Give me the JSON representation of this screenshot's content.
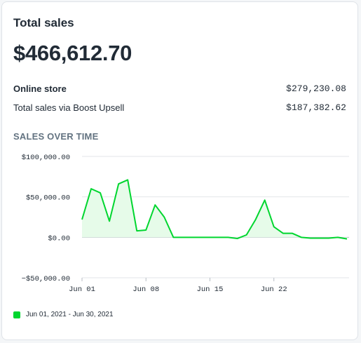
{
  "card": {
    "title": "Total sales",
    "total": "$466,612.70"
  },
  "breakdown": [
    {
      "label": "Online store",
      "value": "$279,230.08"
    },
    {
      "label": "Total sales via Boost Upsell",
      "value": "$187,382.62"
    }
  ],
  "section_title": "SALES OVER TIME",
  "colors": {
    "line": "#00d62f",
    "fill": "#e6fbe9",
    "grid": "#e3e6ea",
    "zero": "#b8bec4"
  },
  "chart_data": {
    "type": "area",
    "x": [
      "Jun 01",
      "Jun 02",
      "Jun 03",
      "Jun 04",
      "Jun 05",
      "Jun 06",
      "Jun 07",
      "Jun 08",
      "Jun 09",
      "Jun 10",
      "Jun 11",
      "Jun 12",
      "Jun 13",
      "Jun 14",
      "Jun 15",
      "Jun 16",
      "Jun 17",
      "Jun 18",
      "Jun 19",
      "Jun 20",
      "Jun 21",
      "Jun 22",
      "Jun 23",
      "Jun 24",
      "Jun 25",
      "Jun 26",
      "Jun 27",
      "Jun 28",
      "Jun 29",
      "Jun 30"
    ],
    "series": [
      {
        "name": "Jun 01, 2021 - Jun 30, 2021",
        "values": [
          22000,
          60000,
          55000,
          20000,
          66000,
          71000,
          8000,
          9000,
          40000,
          25000,
          0,
          0,
          0,
          0,
          0,
          0,
          0,
          -1500,
          3000,
          22000,
          46000,
          13000,
          5000,
          5000,
          0,
          -1000,
          -1000,
          -1000,
          0,
          -2000
        ]
      }
    ],
    "ylim": [
      -50000,
      100000
    ],
    "yticks": [
      100000,
      50000,
      0,
      -50000
    ],
    "ytick_labels": [
      "$100,000.00",
      "$50,000.00",
      "$0.00",
      "−$50,000.00"
    ],
    "xticks": [
      "Jun 01",
      "Jun 08",
      "Jun 15",
      "Jun 22"
    ],
    "grid": true,
    "legend": "bottom-left"
  }
}
